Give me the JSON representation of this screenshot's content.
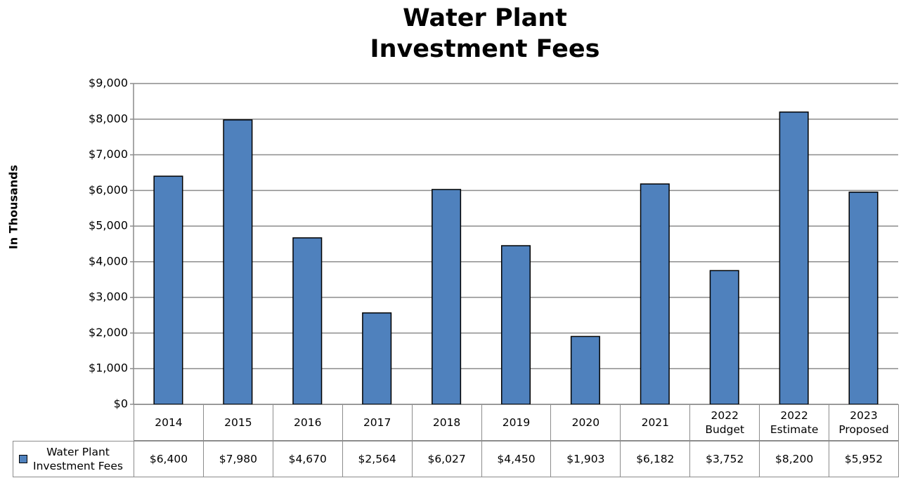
{
  "chart_data": {
    "type": "bar",
    "title": "Water Plant\nInvestment Fees",
    "y_axis_label": "In Thousands",
    "categories": [
      "2014",
      "2015",
      "2016",
      "2017",
      "2018",
      "2019",
      "2020",
      "2021",
      "2022\nBudget",
      "2022\nEstimate",
      "2023\nProposed"
    ],
    "series": [
      {
        "name": "Water Plant\nInvestment Fees",
        "color": "#4f81bd",
        "values": [
          6400,
          7980,
          4670,
          2564,
          6027,
          4450,
          1903,
          6182,
          3752,
          8200,
          5952
        ],
        "value_labels": [
          "$6,400",
          "$7,980",
          "$4,670",
          "$2,564",
          "$6,027",
          "$4,450",
          "$1,903",
          "$6,182",
          "$3,752",
          "$8,200",
          "$5,952"
        ]
      }
    ],
    "ylim": [
      0,
      9000
    ],
    "yticks": [
      {
        "value": 0,
        "label": "$0"
      },
      {
        "value": 1000,
        "label": "$1,000"
      },
      {
        "value": 2000,
        "label": "$2,000"
      },
      {
        "value": 3000,
        "label": "$3,000"
      },
      {
        "value": 4000,
        "label": "$4,000"
      },
      {
        "value": 5000,
        "label": "$5,000"
      },
      {
        "value": 6000,
        "label": "$6,000"
      },
      {
        "value": 7000,
        "label": "$7,000"
      },
      {
        "value": 8000,
        "label": "$8,000"
      },
      {
        "value": 9000,
        "label": "$9,000"
      }
    ],
    "grid": true
  }
}
